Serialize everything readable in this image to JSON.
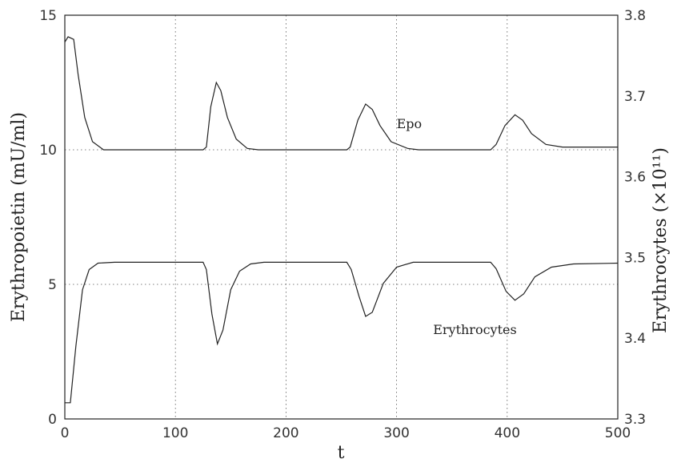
{
  "chart_data": {
    "type": "line",
    "x_axis": {
      "label": "t",
      "ticks": [
        "0",
        "100",
        "200",
        "300",
        "400",
        "500"
      ],
      "range": [
        0,
        500
      ]
    },
    "y_axis_left": {
      "label": "Erythropoietin (mU/ml)",
      "ticks": [
        "0",
        "5",
        "10",
        "15"
      ],
      "range": [
        0,
        15
      ]
    },
    "y_axis_right": {
      "label": "Erythrocytes (×10¹¹)",
      "ticks": [
        "3.3",
        "3.4",
        "3.5",
        "3.6",
        "3.7",
        "3.8"
      ],
      "range": [
        3.3,
        3.8
      ]
    },
    "grid": true,
    "series": [
      {
        "name": "Epo",
        "axis": "left",
        "points": [
          [
            0,
            14.0
          ],
          [
            3,
            14.2
          ],
          [
            8,
            14.1
          ],
          [
            12,
            12.8
          ],
          [
            18,
            11.2
          ],
          [
            25,
            10.3
          ],
          [
            35,
            10.0
          ],
          [
            125,
            10.0
          ],
          [
            128,
            10.1
          ],
          [
            132,
            11.6
          ],
          [
            137,
            12.5
          ],
          [
            141,
            12.2
          ],
          [
            147,
            11.2
          ],
          [
            155,
            10.4
          ],
          [
            165,
            10.05
          ],
          [
            175,
            10.0
          ],
          [
            255,
            10.0
          ],
          [
            258,
            10.1
          ],
          [
            265,
            11.1
          ],
          [
            272,
            11.7
          ],
          [
            278,
            11.5
          ],
          [
            285,
            10.9
          ],
          [
            295,
            10.3
          ],
          [
            310,
            10.05
          ],
          [
            320,
            10.0
          ],
          [
            385,
            10.0
          ],
          [
            390,
            10.2
          ],
          [
            398,
            10.9
          ],
          [
            407,
            11.3
          ],
          [
            414,
            11.1
          ],
          [
            422,
            10.6
          ],
          [
            435,
            10.2
          ],
          [
            450,
            10.1
          ],
          [
            500,
            10.1
          ]
        ]
      },
      {
        "name": "Erythrocytes",
        "axis": "right",
        "points": [
          [
            0,
            3.32
          ],
          [
            5,
            3.32
          ],
          [
            10,
            3.39
          ],
          [
            16,
            3.46
          ],
          [
            22,
            3.485
          ],
          [
            30,
            3.493
          ],
          [
            45,
            3.494
          ],
          [
            125,
            3.494
          ],
          [
            128,
            3.485
          ],
          [
            133,
            3.43
          ],
          [
            138,
            3.393
          ],
          [
            143,
            3.41
          ],
          [
            150,
            3.46
          ],
          [
            158,
            3.483
          ],
          [
            168,
            3.492
          ],
          [
            180,
            3.494
          ],
          [
            255,
            3.494
          ],
          [
            259,
            3.485
          ],
          [
            266,
            3.452
          ],
          [
            272,
            3.427
          ],
          [
            278,
            3.432
          ],
          [
            288,
            3.468
          ],
          [
            300,
            3.488
          ],
          [
            315,
            3.494
          ],
          [
            385,
            3.494
          ],
          [
            390,
            3.486
          ],
          [
            399,
            3.458
          ],
          [
            407,
            3.447
          ],
          [
            415,
            3.455
          ],
          [
            425,
            3.476
          ],
          [
            440,
            3.488
          ],
          [
            460,
            3.492
          ],
          [
            500,
            3.493
          ]
        ]
      }
    ],
    "annotations": [
      {
        "text": "Epo",
        "x": 300,
        "y": 10.8,
        "axis": "left"
      },
      {
        "text": "Erythrocytes",
        "x": 333,
        "y": 3.405,
        "axis": "right"
      }
    ]
  }
}
